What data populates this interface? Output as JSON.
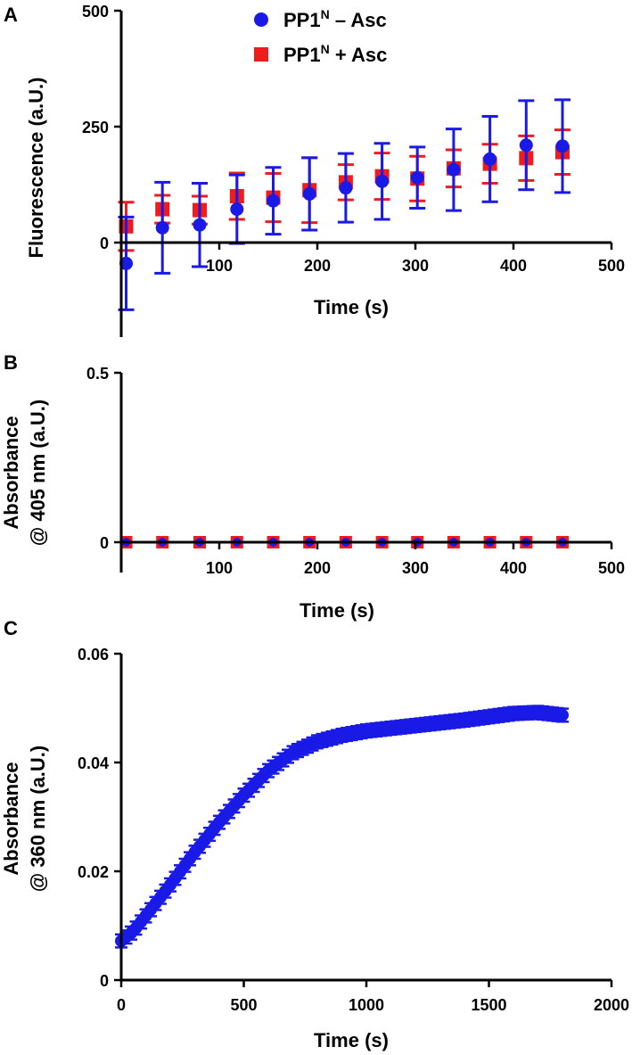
{
  "colors": {
    "minus": "#1a1ae6",
    "plus": "#ee1c1c",
    "axis": "#000000"
  },
  "legend": {
    "minus": {
      "base": "PP1",
      "sup": "N",
      "tail": " – Asc"
    },
    "plus": {
      "base": "PP1",
      "sup": "N",
      "tail": " + Asc"
    }
  },
  "chart_data": [
    {
      "panel": "A",
      "type": "scatter",
      "xlabel": "Time (s)",
      "ylabel": "Fluorescence (a.U.)",
      "xlim": [
        0,
        500
      ],
      "ylim": [
        -200,
        500
      ],
      "xticks": [
        100,
        200,
        300,
        400,
        500
      ],
      "yticks": [
        0,
        250,
        500
      ],
      "x": [
        5,
        42,
        80,
        118,
        155,
        192,
        229,
        266,
        302,
        339,
        376,
        413,
        450
      ],
      "series": [
        {
          "name": "PP1N + Asc",
          "marker": "square",
          "color": "plus",
          "values": [
            35,
            72,
            70,
            100,
            97,
            113,
            130,
            143,
            138,
            160,
            170,
            182,
            195
          ],
          "errors": [
            52,
            30,
            30,
            50,
            52,
            70,
            38,
            50,
            48,
            40,
            42,
            48,
            48
          ]
        },
        {
          "name": "PP1N – Asc",
          "marker": "circle",
          "color": "minus",
          "values": [
            -45,
            32,
            38,
            72,
            90,
            105,
            118,
            132,
            140,
            157,
            180,
            210,
            208
          ],
          "errors": [
            100,
            98,
            90,
            74,
            72,
            78,
            74,
            82,
            66,
            88,
            92,
            96,
            100
          ]
        }
      ]
    },
    {
      "panel": "B",
      "type": "scatter",
      "xlabel": "Time (s)",
      "ylabel": "Absorbance @ 405 nm (a.U.)",
      "xlim": [
        0,
        500
      ],
      "ylim": [
        0,
        0.5
      ],
      "xticks": [
        100,
        200,
        300,
        400,
        500
      ],
      "yticks": [
        0,
        0.5
      ],
      "x": [
        5,
        42,
        80,
        118,
        155,
        192,
        229,
        266,
        302,
        339,
        376,
        413,
        450
      ],
      "series": [
        {
          "name": "PP1N + Asc",
          "marker": "square",
          "color": "plus",
          "values": [
            0,
            0,
            0,
            0,
            0,
            0,
            0,
            0,
            0,
            0,
            0,
            0,
            0
          ]
        },
        {
          "name": "PP1N – Asc",
          "marker": "circle",
          "color": "minus",
          "values": [
            0,
            0,
            0,
            0,
            0,
            0,
            0,
            0,
            0,
            0,
            0,
            0,
            0
          ]
        }
      ]
    },
    {
      "panel": "C",
      "type": "scatter",
      "xlabel": "Time (s)",
      "ylabel": "Absorbance @ 360 nm (a.U.)",
      "xlim": [
        0,
        2000
      ],
      "ylim": [
        0,
        0.06
      ],
      "xticks": [
        0,
        500,
        1000,
        1500,
        2000
      ],
      "yticks": [
        0,
        0.02,
        0.04,
        0.06
      ],
      "x_start": 0,
      "x_end": 1800,
      "x_step": 20,
      "curve": {
        "x": [
          0,
          50,
          100,
          200,
          300,
          400,
          500,
          600,
          700,
          800,
          900,
          1000,
          1200,
          1400,
          1500,
          1600,
          1700,
          1800
        ],
        "y": [
          0.0072,
          0.009,
          0.0118,
          0.0175,
          0.0235,
          0.029,
          0.034,
          0.0385,
          0.0418,
          0.0438,
          0.045,
          0.0458,
          0.0468,
          0.0478,
          0.0484,
          0.049,
          0.0492,
          0.0487
        ]
      },
      "error": 0.0012,
      "series": [
        {
          "name": "PP1N – Asc",
          "marker": "circle",
          "color": "minus"
        }
      ]
    }
  ]
}
